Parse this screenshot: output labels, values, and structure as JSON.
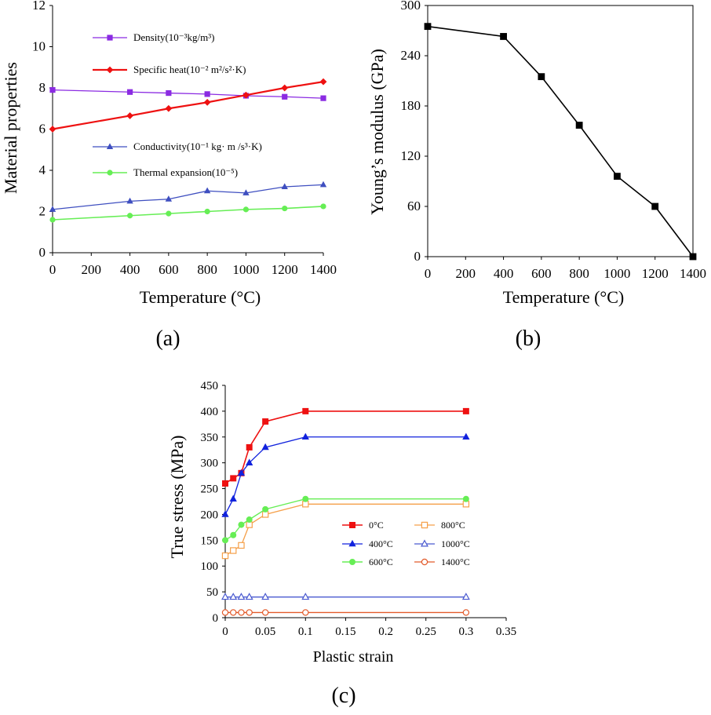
{
  "chart_data": [
    {
      "panel_label": "(a)",
      "type": "line",
      "xlabel": "Temperature (°C)",
      "ylabel": "Material properties",
      "xlim": [
        0,
        1400
      ],
      "ylim": [
        0,
        12
      ],
      "xticks": [
        0,
        200,
        400,
        600,
        800,
        1000,
        1200,
        1400
      ],
      "yticks": [
        0,
        2,
        4,
        6,
        8,
        10,
        12
      ],
      "grid": false,
      "legend_placement": "inside-left",
      "series": [
        {
          "name": "Density(10⁻³kg/m³)",
          "color": "#8b2be2",
          "marker": "square",
          "x": [
            0,
            400,
            600,
            800,
            1000,
            1200,
            1400
          ],
          "y": [
            7.9,
            7.8,
            7.75,
            7.7,
            7.62,
            7.57,
            7.5
          ]
        },
        {
          "name": "Specific heat(10⁻² m²/s²·K)",
          "color": "#ee1111",
          "marker": "diamond",
          "x": [
            0,
            400,
            600,
            800,
            1000,
            1200,
            1400
          ],
          "y": [
            6.0,
            6.65,
            7.0,
            7.3,
            7.65,
            8.0,
            8.3
          ]
        },
        {
          "name": "Conductivity(10⁻¹ kg· m /s³·K)",
          "color": "#3f4fc0",
          "marker": "triangle",
          "x": [
            0,
            400,
            600,
            800,
            1000,
            1200,
            1400
          ],
          "y": [
            2.1,
            2.5,
            2.6,
            3.0,
            2.9,
            3.2,
            3.3
          ]
        },
        {
          "name": "Thermal expansion(10⁻⁵)",
          "color": "#66ee55",
          "marker": "circle",
          "x": [
            0,
            400,
            600,
            800,
            1000,
            1200,
            1400
          ],
          "y": [
            1.6,
            1.8,
            1.9,
            2.0,
            2.1,
            2.15,
            2.25
          ]
        }
      ]
    },
    {
      "panel_label": "(b)",
      "type": "line",
      "xlabel": "Temperature (°C)",
      "ylabel": "Young’s modulus (GPa)",
      "xlim": [
        0,
        1400
      ],
      "ylim": [
        0,
        300
      ],
      "xticks": [
        0,
        200,
        400,
        600,
        800,
        1000,
        1200,
        1400
      ],
      "yticks": [
        0,
        60,
        120,
        180,
        240,
        300
      ],
      "grid": false,
      "series": [
        {
          "color": "#000000",
          "marker": "square",
          "x": [
            0,
            400,
            600,
            800,
            1000,
            1200,
            1400
          ],
          "y": [
            275,
            263,
            215,
            157,
            96,
            60,
            0
          ]
        }
      ]
    },
    {
      "panel_label": "(c)",
      "type": "line",
      "xlabel": "Plastic strain",
      "ylabel": "True stress (MPa)",
      "xlim": [
        0,
        0.35
      ],
      "ylim": [
        0,
        450
      ],
      "xticks": [
        "0",
        "0.05",
        "0.1",
        "0.15",
        "0.2",
        "0.25",
        "0.3",
        "0.35"
      ],
      "yticks": [
        0,
        50,
        100,
        150,
        200,
        250,
        300,
        350,
        400,
        450
      ],
      "grid": false,
      "legend_placement": "inside-right",
      "series": [
        {
          "name": "0°C",
          "color": "#ee1111",
          "marker": "square",
          "filled": true,
          "x": [
            0,
            0.01,
            0.02,
            0.03,
            0.05,
            0.1,
            0.3
          ],
          "y": [
            260,
            270,
            280,
            330,
            380,
            400,
            400
          ]
        },
        {
          "name": "800°C",
          "color": "#f5a04a",
          "marker": "square",
          "filled": false,
          "x": [
            0,
            0.01,
            0.02,
            0.03,
            0.05,
            0.1,
            0.3
          ],
          "y": [
            120,
            130,
            140,
            180,
            200,
            220,
            220
          ]
        },
        {
          "name": "400°C",
          "color": "#1122dd",
          "marker": "triangle",
          "filled": true,
          "x": [
            0,
            0.01,
            0.02,
            0.03,
            0.05,
            0.1,
            0.3
          ],
          "y": [
            200,
            230,
            280,
            300,
            330,
            350,
            350
          ]
        },
        {
          "name": "1000°C",
          "color": "#4a5ad0",
          "marker": "triangle",
          "filled": false,
          "x": [
            0,
            0.01,
            0.02,
            0.03,
            0.05,
            0.1,
            0.3
          ],
          "y": [
            40,
            40,
            40,
            40,
            40,
            40,
            40
          ]
        },
        {
          "name": "600°C",
          "color": "#66ee55",
          "marker": "circle",
          "filled": true,
          "x": [
            0,
            0.01,
            0.02,
            0.03,
            0.05,
            0.1,
            0.3
          ],
          "y": [
            150,
            160,
            180,
            190,
            210,
            230,
            230
          ]
        },
        {
          "name": "1400°C",
          "color": "#e25a2a",
          "marker": "circle",
          "filled": false,
          "x": [
            0,
            0.01,
            0.02,
            0.03,
            0.05,
            0.1,
            0.3
          ],
          "y": [
            10,
            10,
            10,
            10,
            10,
            10,
            10
          ]
        }
      ]
    }
  ]
}
